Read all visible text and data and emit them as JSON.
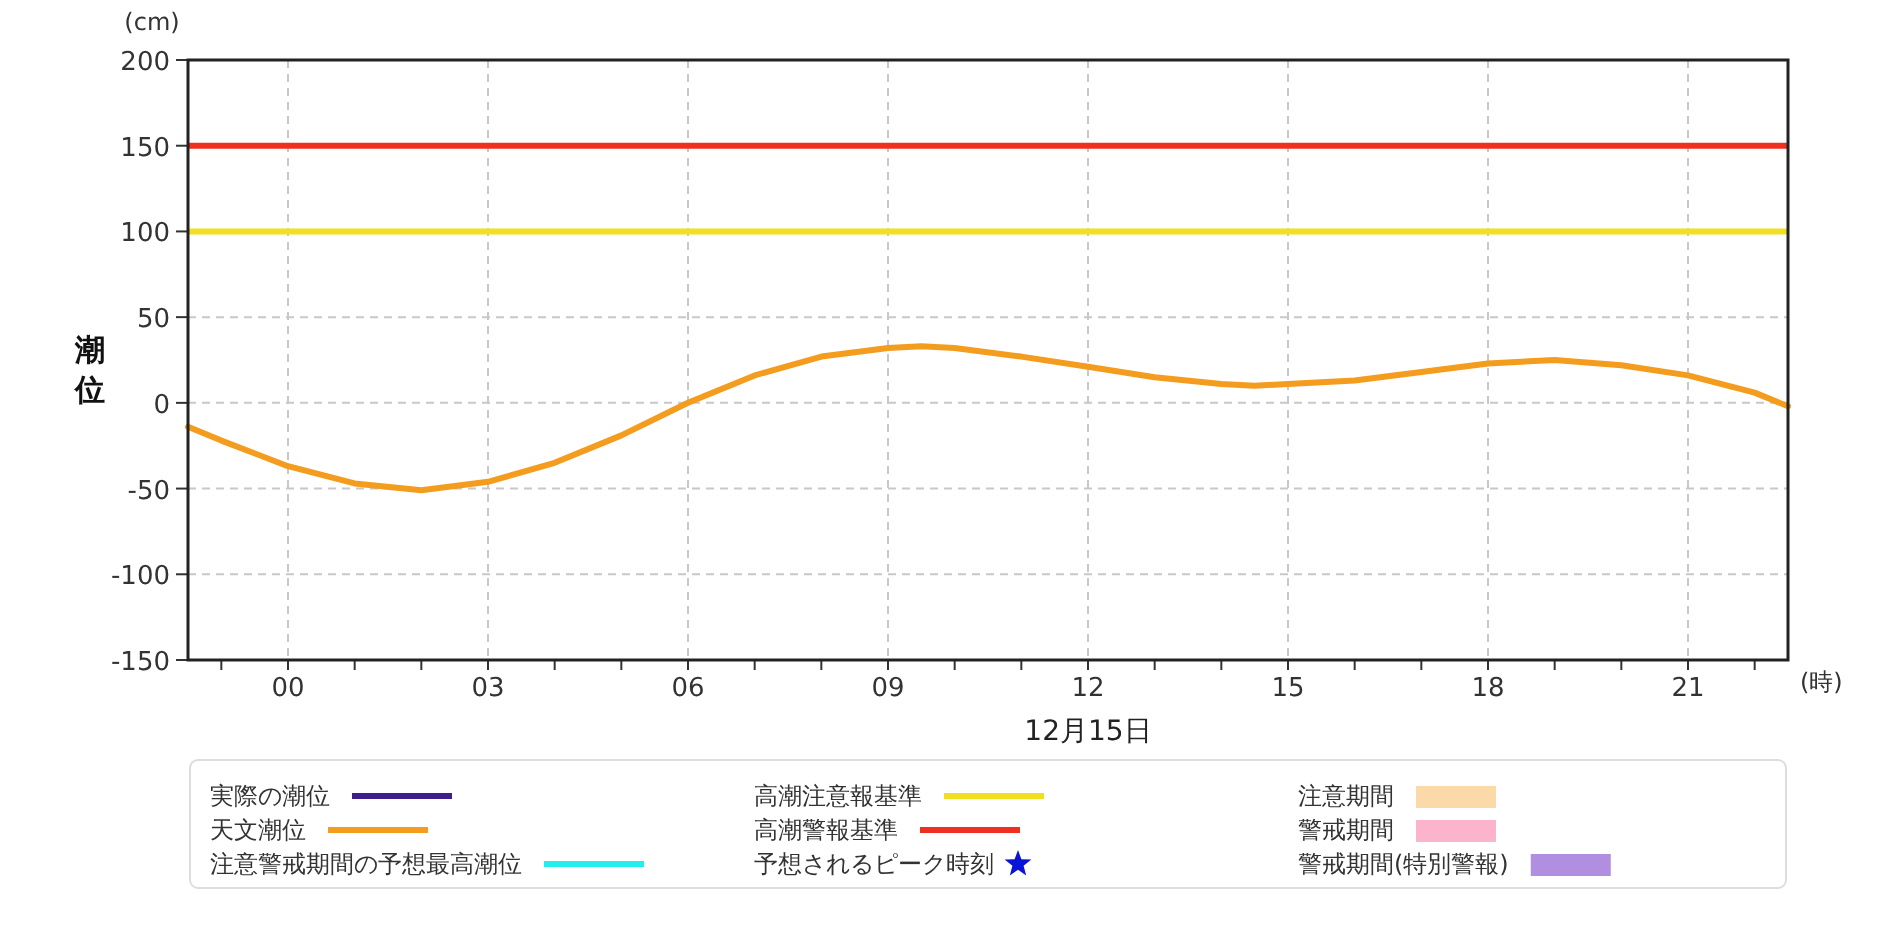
{
  "chart_data": {
    "type": "line",
    "xlabel": "(時)",
    "ylabel": "潮位",
    "annotations": [
      "(cm)",
      "12月15日"
    ],
    "xlim": [
      -1.5,
      22.5
    ],
    "ylim": [
      -150,
      200
    ],
    "yticks": [
      -150,
      -100,
      -50,
      0,
      50,
      100,
      150,
      200
    ],
    "xticks": [
      {
        "value": -1,
        "label": null
      },
      {
        "value": 0,
        "label": "00"
      },
      {
        "value": 1,
        "label": null
      },
      {
        "value": 2,
        "label": null
      },
      {
        "value": 3,
        "label": "03"
      },
      {
        "value": 4,
        "label": null
      },
      {
        "value": 5,
        "label": null
      },
      {
        "value": 6,
        "label": "06"
      },
      {
        "value": 7,
        "label": null
      },
      {
        "value": 8,
        "label": null
      },
      {
        "value": 9,
        "label": "09"
      },
      {
        "value": 10,
        "label": null
      },
      {
        "value": 11,
        "label": null
      },
      {
        "value": 12,
        "label": "12"
      },
      {
        "value": 13,
        "label": null
      },
      {
        "value": 14,
        "label": null
      },
      {
        "value": 15,
        "label": "15"
      },
      {
        "value": 16,
        "label": null
      },
      {
        "value": 17,
        "label": null
      },
      {
        "value": 18,
        "label": "18"
      },
      {
        "value": 19,
        "label": null
      },
      {
        "value": 20,
        "label": null
      },
      {
        "value": 21,
        "label": "21"
      },
      {
        "value": 22,
        "label": null
      }
    ],
    "grid": true,
    "legend": "bottom",
    "line_style": "solid",
    "marker": "none",
    "x": [
      -1.5,
      -1,
      0,
      1,
      2,
      3,
      4,
      5,
      6,
      7,
      8,
      9,
      9.5,
      10,
      11,
      12,
      13,
      14,
      14.5,
      15,
      16,
      17,
      18,
      19,
      20,
      21,
      22,
      22.5
    ],
    "series": [
      {
        "name": "実際の潮位",
        "color": "#3d1f8c",
        "values": [
          null,
          null,
          null,
          null,
          null,
          null,
          null,
          null,
          null,
          null,
          null,
          null,
          null,
          null,
          null,
          null,
          null,
          null,
          null,
          null,
          null,
          null,
          null,
          null,
          null,
          null,
          null,
          null
        ]
      },
      {
        "name": "天文潮位",
        "color": "#f39c1e",
        "values": [
          -14,
          -22,
          -37,
          -47,
          -51,
          -46,
          -35,
          -19,
          0,
          16,
          27,
          32,
          33,
          32,
          27,
          21,
          15,
          11,
          10,
          11,
          13,
          18,
          23,
          25,
          22,
          16,
          6,
          -2
        ]
      },
      {
        "name": "注意警戒期間の予想最高潮位",
        "color": "#22eeee",
        "values": [
          null,
          null,
          null,
          null,
          null,
          null,
          null,
          null,
          null,
          null,
          null,
          null,
          null,
          null,
          null,
          null,
          null,
          null,
          null,
          null,
          null,
          null,
          null,
          null,
          null,
          null,
          null,
          null
        ]
      },
      {
        "name": "予想されるピーク時刻",
        "type": "scatter",
        "marker": "star",
        "color": "#0a14d8",
        "values": [
          null,
          null,
          null,
          null,
          null,
          null,
          null,
          null,
          null,
          null,
          null,
          null,
          null,
          null,
          null,
          null,
          null,
          null,
          null,
          null,
          null,
          null,
          null,
          null,
          null,
          null,
          null,
          null
        ]
      },
      {
        "name": "注意期間",
        "type": "area",
        "color": "#fcd9a8",
        "values": [
          null,
          null,
          null,
          null,
          null,
          null,
          null,
          null,
          null,
          null,
          null,
          null,
          null,
          null,
          null,
          null,
          null,
          null,
          null,
          null,
          null,
          null,
          null,
          null,
          null,
          null,
          null,
          null
        ]
      },
      {
        "name": "警戒期間",
        "type": "area",
        "color": "#fbb4cc",
        "values": [
          null,
          null,
          null,
          null,
          null,
          null,
          null,
          null,
          null,
          null,
          null,
          null,
          null,
          null,
          null,
          null,
          null,
          null,
          null,
          null,
          null,
          null,
          null,
          null,
          null,
          null,
          null,
          null
        ]
      },
      {
        "name": "警戒期間(特別警報)",
        "type": "area",
        "color": "#b08ee0",
        "values": [
          null,
          null,
          null,
          null,
          null,
          null,
          null,
          null,
          null,
          null,
          null,
          null,
          null,
          null,
          null,
          null,
          null,
          null,
          null,
          null,
          null,
          null,
          null,
          null,
          null,
          null,
          null,
          null
        ]
      }
    ],
    "ref_lines": [
      {
        "axis": "y",
        "value": 100,
        "label": "高潮注意報基準",
        "color": "#f0e020"
      },
      {
        "axis": "y",
        "value": 150,
        "label": "高潮警報基準",
        "color": "#ee3020"
      }
    ]
  }
}
